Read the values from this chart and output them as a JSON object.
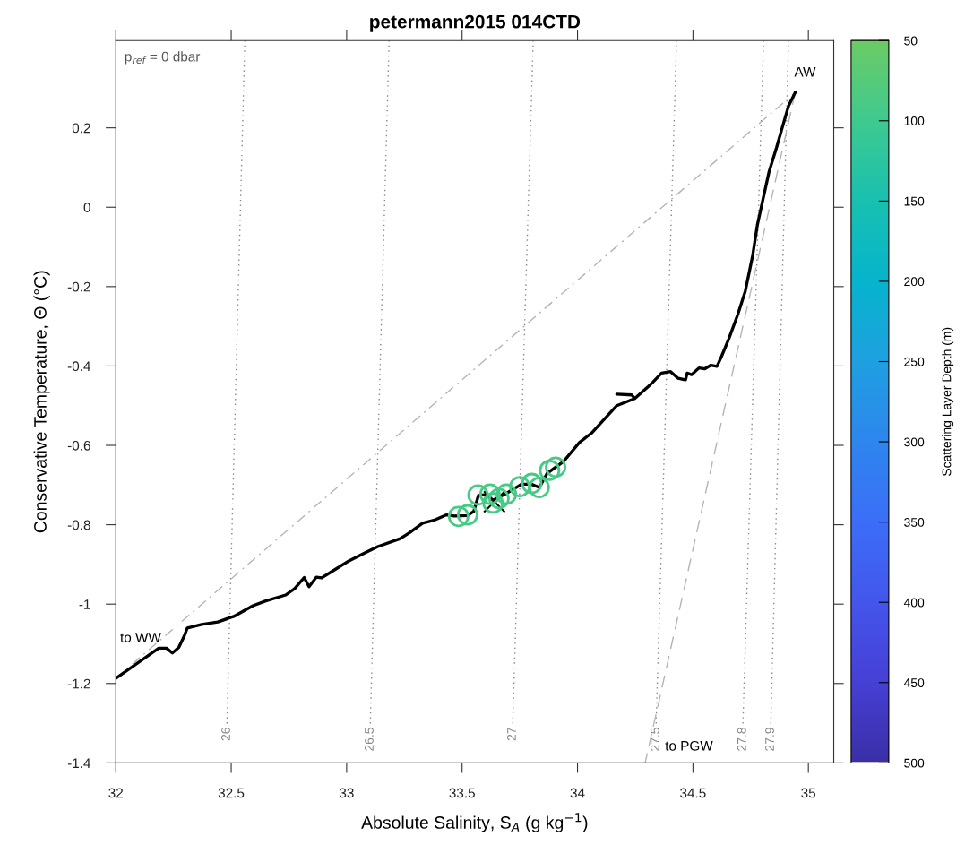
{
  "chart_data": {
    "type": "line",
    "title": "petermann2015 014CTD",
    "xlabel": "Absolute Salinity, S$_{A}$ (g kg$^{−1}$)",
    "ylabel": "Conservative Temperature, Θ (°C)",
    "clabel": "Scattering Layer Depth (m)",
    "xlim": [
      32,
      35.11
    ],
    "ylim": [
      -1.4,
      0.42
    ],
    "xticks": [
      32,
      32.5,
      33,
      33.5,
      34,
      34.5,
      35
    ],
    "yticks": [
      -1.4,
      -1.2,
      -1,
      -0.8,
      -0.6,
      -0.4,
      -0.2,
      0,
      0.2
    ],
    "clim": [
      50,
      500
    ],
    "cticks": [
      50,
      100,
      150,
      200,
      250,
      300,
      350,
      400,
      450,
      500
    ],
    "grid": false,
    "legend": false,
    "annotations": [
      "AW",
      "to WW",
      "to PGW",
      "p$_{ref}$ = 0 dbar"
    ],
    "series": [
      {
        "type": "line",
        "name": "26",
        "color": "#888888",
        "line_style": "dotted",
        "x": [
          32.559,
          32.481
        ],
        "values": [
          0.42,
          -1.31
        ]
      },
      {
        "type": "line",
        "name": "26.5",
        "color": "#888888",
        "line_style": "dotted",
        "x": [
          33.184,
          33.102
        ],
        "values": [
          0.42,
          -1.31
        ]
      },
      {
        "type": "line",
        "name": "27",
        "color": "#888888",
        "line_style": "dotted",
        "x": [
          33.808,
          33.719
        ],
        "values": [
          0.42,
          -1.31
        ]
      },
      {
        "type": "line",
        "name": "27.5",
        "color": "#888888",
        "line_style": "dotted",
        "x": [
          34.429,
          34.34
        ],
        "values": [
          0.42,
          -1.31
        ]
      },
      {
        "type": "line",
        "name": "27.8",
        "color": "#888888",
        "line_style": "dotted",
        "x": [
          34.806,
          34.716
        ],
        "values": [
          0.42,
          -1.31
        ]
      },
      {
        "type": "line",
        "name": "27.9",
        "color": "#888888",
        "line_style": "dotted",
        "x": [
          34.914,
          34.837
        ],
        "values": [
          0.42,
          -1.31
        ]
      },
      {
        "type": "line",
        "color": "#b4b4b4",
        "line_style": "dashdot",
        "x": [
          32.0,
          34.943
        ],
        "values": [
          -1.187,
          0.289
        ]
      },
      {
        "type": "line",
        "color": "#b4b4b4",
        "line_style": "dashed",
        "x": [
          34.943,
          34.293
        ],
        "values": [
          0.289,
          -1.4
        ]
      },
      {
        "color": "#000000",
        "line_style": "solid",
        "x": [
          32.0,
          32.186,
          32.22,
          32.245,
          32.273,
          32.296,
          32.31,
          32.372,
          32.442,
          32.511,
          32.594,
          32.65,
          32.736,
          32.775,
          32.816,
          32.837,
          32.869,
          32.892,
          32.941,
          33.01,
          33.079,
          33.135,
          33.232,
          33.273,
          33.329,
          33.377,
          33.433,
          33.467,
          33.523,
          33.551,
          33.571,
          33.606,
          33.634,
          33.689,
          33.758,
          33.8,
          33.835,
          33.869,
          33.939,
          34.008,
          34.061,
          34.17,
          34.248,
          34.235,
          34.17,
          34.235,
          34.248,
          34.306,
          34.326,
          34.364,
          34.403,
          34.436,
          34.468,
          34.475,
          34.494,
          34.526,
          34.552,
          34.578,
          34.604,
          34.623,
          34.655,
          34.694,
          34.727,
          34.759,
          34.779,
          34.801,
          34.83,
          34.862,
          34.888,
          34.914,
          34.943
        ],
        "values": [
          -1.187,
          -1.111,
          -1.111,
          -1.123,
          -1.109,
          -1.081,
          -1.06,
          -1.051,
          -1.045,
          -1.031,
          -1.004,
          -0.992,
          -0.977,
          -0.961,
          -0.933,
          -0.956,
          -0.932,
          -0.934,
          -0.916,
          -0.891,
          -0.871,
          -0.855,
          -0.835,
          -0.82,
          -0.796,
          -0.789,
          -0.775,
          -0.778,
          -0.777,
          -0.766,
          -0.726,
          -0.724,
          -0.738,
          -0.722,
          -0.698,
          -0.698,
          -0.706,
          -0.67,
          -0.641,
          -0.593,
          -0.569,
          -0.5,
          -0.482,
          -0.473,
          -0.471,
          -0.473,
          -0.482,
          -0.452,
          -0.441,
          -0.418,
          -0.414,
          -0.431,
          -0.435,
          -0.418,
          -0.422,
          -0.405,
          -0.407,
          -0.398,
          -0.401,
          -0.377,
          -0.332,
          -0.271,
          -0.211,
          -0.121,
          -0.045,
          0.014,
          0.09,
          0.15,
          0.203,
          0.255,
          0.289
        ]
      },
      {
        "type": "scatter",
        "marker": "circle",
        "x": [
          33.485,
          33.524,
          33.569,
          33.621,
          33.634,
          33.66,
          33.692,
          33.75,
          33.802,
          33.834,
          33.879,
          33.905
        ],
        "values": [
          -0.779,
          -0.775,
          -0.725,
          -0.723,
          -0.745,
          -0.734,
          -0.723,
          -0.704,
          -0.696,
          -0.706,
          -0.663,
          -0.655
        ],
        "cvalues": [
          90,
          90,
          90,
          90,
          90,
          90,
          90,
          90,
          90,
          90,
          90,
          90
        ]
      },
      {
        "type": "scatter",
        "marker": "cross",
        "color": "#000000",
        "x": [
          33.64
        ],
        "values": [
          -0.742
        ]
      }
    ]
  }
}
